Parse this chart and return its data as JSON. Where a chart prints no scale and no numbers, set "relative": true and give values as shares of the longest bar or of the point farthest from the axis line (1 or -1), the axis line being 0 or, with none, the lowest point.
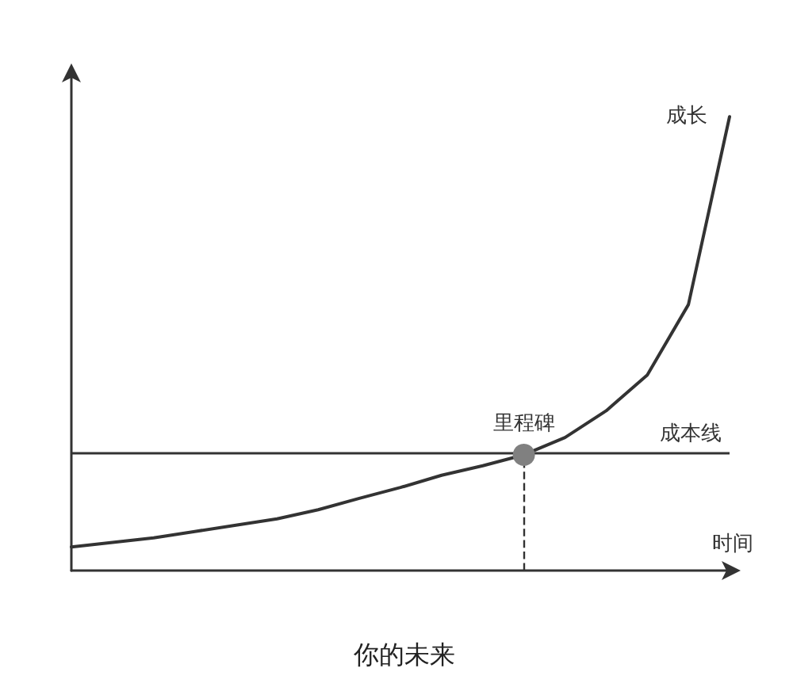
{
  "chart_data": {
    "type": "line",
    "title": "你的未来",
    "xlabel": "时间",
    "relative": true,
    "grid": false,
    "legend": false,
    "marker": "none",
    "annotations": [
      {
        "text": "里程碑",
        "y": 0.255
      }
    ],
    "categories": [
      null,
      null,
      null,
      null,
      null,
      null,
      null,
      null,
      null,
      null,
      null,
      null,
      null,
      null,
      null,
      null,
      null
    ],
    "series": [
      {
        "name": "成长",
        "color": "#333333",
        "values": [
          0.052,
          0.062,
          0.072,
          0.086,
          0.1,
          0.114,
          0.134,
          0.159,
          0.183,
          0.21,
          0.231,
          0.255,
          0.293,
          0.352,
          0.431,
          0.586,
          1
        ]
      }
    ],
    "ref_lines": [
      {
        "axis": "y",
        "value": 0.255,
        "label": "成本线",
        "color": "#333333",
        "line_style": "solid"
      }
    ]
  }
}
